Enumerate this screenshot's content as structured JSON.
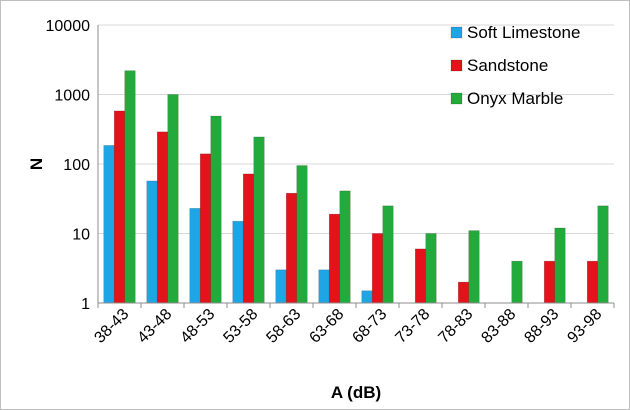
{
  "chart_data": {
    "type": "bar",
    "title": "",
    "xlabel": "A (dB)",
    "ylabel": "N",
    "y_scale": "log",
    "ylim": [
      1,
      10000
    ],
    "y_ticks": [
      "1",
      "10",
      "100",
      "1000",
      "10000"
    ],
    "grid": "horizontal",
    "legend_position": "top-right",
    "categories": [
      "38-43",
      "43-48",
      "48-53",
      "53-58",
      "58-63",
      "63-68",
      "68-73",
      "73-78",
      "78-83",
      "83-88",
      "88-93",
      "93-98"
    ],
    "series": [
      {
        "name": "Soft Limestone",
        "color": "#1ea5e6",
        "values": [
          185,
          57,
          23,
          15,
          3,
          3,
          1.5,
          null,
          null,
          null,
          null,
          null
        ]
      },
      {
        "name": "Sandstone",
        "color": "#e3121b",
        "values": [
          580,
          290,
          140,
          72,
          38,
          19,
          10,
          6,
          2,
          null,
          4,
          4
        ]
      },
      {
        "name": "Onyx Marble",
        "color": "#22aa3c",
        "values": [
          2200,
          1000,
          490,
          245,
          95,
          41,
          25,
          10,
          11,
          4,
          12,
          25
        ]
      }
    ]
  }
}
